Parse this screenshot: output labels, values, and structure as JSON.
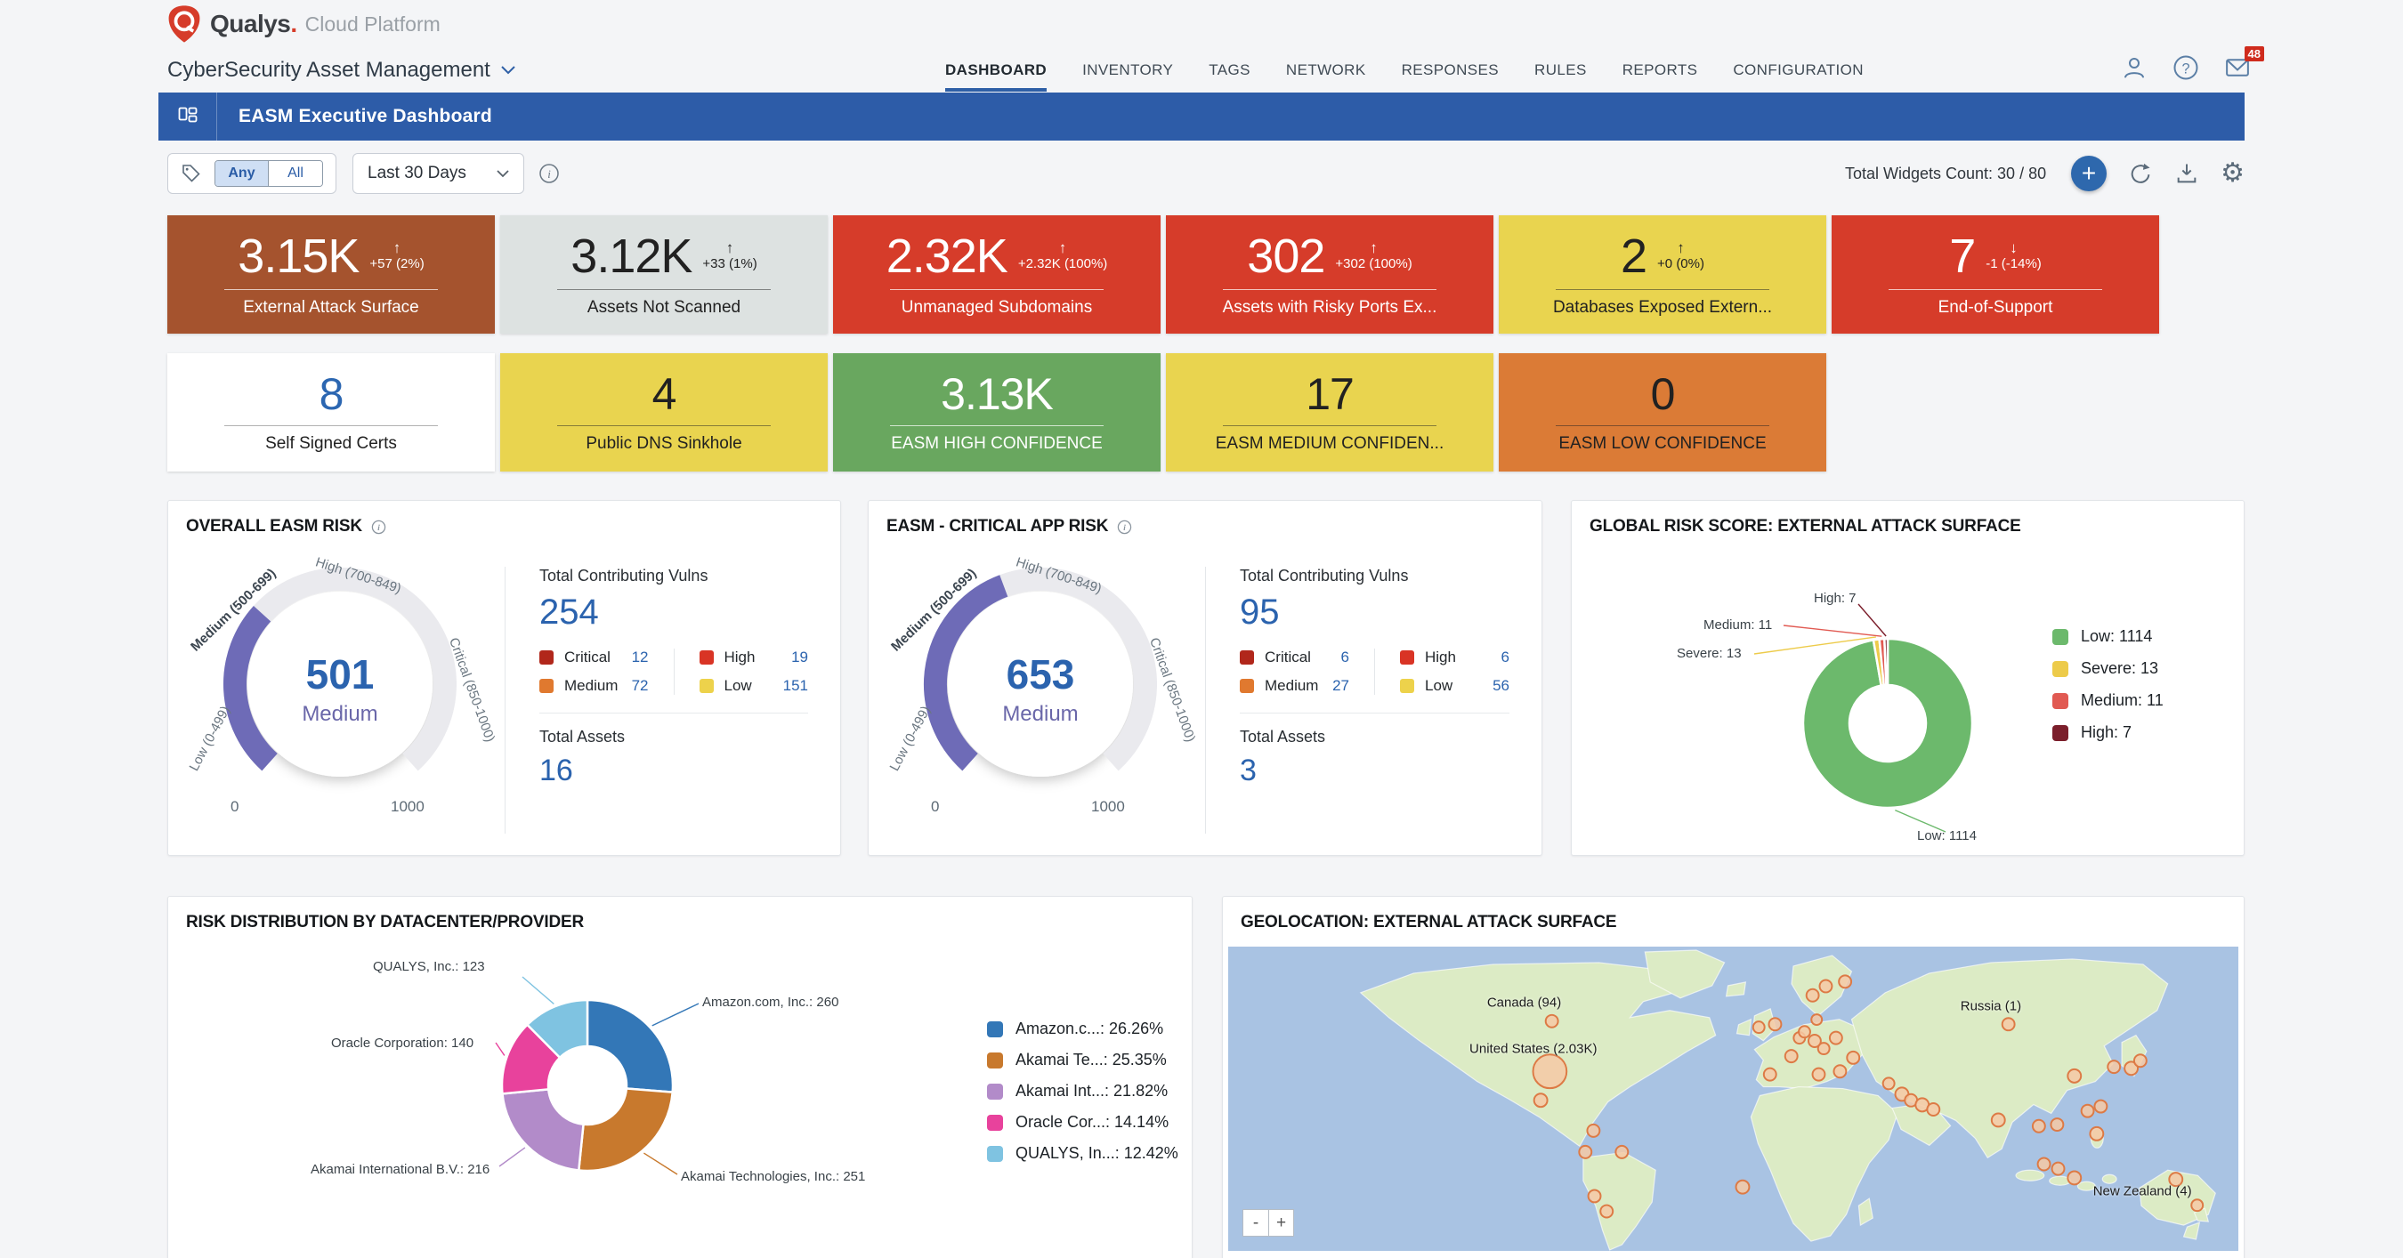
{
  "header": {
    "logo": {
      "brand": "Qualys",
      "dot": ".",
      "platform": "Cloud Platform"
    },
    "module": {
      "label": "CyberSecurity Asset Management"
    },
    "nav": {
      "items": [
        {
          "label": "DASHBOARD"
        },
        {
          "label": "INVENTORY"
        },
        {
          "label": "TAGS"
        },
        {
          "label": "NETWORK"
        },
        {
          "label": "RESPONSES"
        },
        {
          "label": "RULES"
        },
        {
          "label": "REPORTS"
        },
        {
          "label": "CONFIGURATION"
        }
      ]
    },
    "mail_badge": "48"
  },
  "banner": {
    "title": "EASM Executive Dashboard"
  },
  "toolbar": {
    "toggle": {
      "any": "Any",
      "all": "All",
      "selected": "Any"
    },
    "date_range": "Last 30 Days",
    "widgets_count": "Total Widgets Count: 30 / 80",
    "add_label": "+"
  },
  "kpi_row1": [
    {
      "value": "3.15K",
      "arrow": "↑",
      "delta": "+57 (2%)",
      "label": "External Attack Surface",
      "bg": "#a5532e",
      "fg": "#ffffff",
      "line": "rgba(255,255,255,0.7)"
    },
    {
      "value": "3.12K",
      "arrow": "↑",
      "delta": "+33 (1%)",
      "label": "Assets Not Scanned",
      "bg": "#dde2e1",
      "fg": "#212121",
      "line": "rgba(33,33,33,0.5)"
    },
    {
      "value": "2.32K",
      "arrow": "↑",
      "delta": "+2.32K (100%)",
      "label": "Unmanaged Subdomains",
      "bg": "#d63c2a",
      "fg": "#ffffff",
      "line": "rgba(255,255,255,0.7)"
    },
    {
      "value": "302",
      "arrow": "↑",
      "delta": "+302 (100%)",
      "label": "Assets with Risky Ports Ex...",
      "bg": "#d63c2a",
      "fg": "#ffffff",
      "line": "rgba(255,255,255,0.7)"
    },
    {
      "value": "2",
      "arrow": "↑",
      "delta": "+0 (0%)",
      "label": "Databases Exposed Extern...",
      "bg": "#e9d44f",
      "fg": "#212121",
      "line": "rgba(33,33,33,0.5)"
    },
    {
      "value": "7",
      "arrow": "↓",
      "delta": "-1 (-14%)",
      "label": "End-of-Support",
      "bg": "#d63c2a",
      "fg": "#ffffff",
      "line": "rgba(255,255,255,0.7)"
    }
  ],
  "kpi_row2": [
    {
      "value": "8",
      "label": "Self Signed Certs",
      "bg": "#ffffff",
      "fg": "#2b66b1",
      "label_fg": "#212121",
      "line": "rgba(33,33,33,0.35)"
    },
    {
      "value": "4",
      "label": "Public DNS Sinkhole",
      "bg": "#e9d44f",
      "fg": "#212121",
      "label_fg": "#212121",
      "line": "rgba(33,33,33,0.5)"
    },
    {
      "value": "3.13K",
      "label": "EASM HIGH CONFIDENCE",
      "bg": "#69a75f",
      "fg": "#ffffff",
      "label_fg": "#ffffff",
      "line": "rgba(255,255,255,0.7)"
    },
    {
      "value": "17",
      "label": "EASM MEDIUM CONFIDEN...",
      "bg": "#e9d44f",
      "fg": "#212121",
      "label_fg": "#212121",
      "line": "rgba(33,33,33,0.5)"
    },
    {
      "value": "0",
      "label": "EASM LOW CONFIDENCE",
      "bg": "#db7b36",
      "fg": "#212121",
      "label_fg": "#212121",
      "line": "rgba(33,33,33,0.5)"
    }
  ],
  "chart_data": [
    {
      "type": "gauge",
      "title": "OVERALL EASM RISK",
      "value": 501,
      "min": 0,
      "max": 1000,
      "min_label": "0",
      "max_label": "1000",
      "classification": "Medium",
      "fill_color": "#6e6bb7",
      "track_color": "#eaeaee",
      "bands": [
        {
          "label": "Low (0-499)"
        },
        {
          "label": "Medium (500-699)"
        },
        {
          "label": "High (700-849)"
        },
        {
          "label": "Critical (850-1000)"
        }
      ],
      "stats": {
        "vulns_label": "Total Contributing Vulns",
        "vulns_total": "254",
        "breakdown": [
          {
            "label": "Critical",
            "value": "12",
            "color": "#b1271b"
          },
          {
            "label": "Medium",
            "value": "72",
            "color": "#e0792f"
          },
          {
            "label": "High",
            "value": "19",
            "color": "#d93425"
          },
          {
            "label": "Low",
            "value": "151",
            "color": "#edd24b"
          }
        ],
        "assets_label": "Total Assets",
        "assets_total": "16"
      }
    },
    {
      "type": "gauge",
      "title": "EASM - CRITICAL APP RISK",
      "value": 653,
      "min": 0,
      "max": 1000,
      "min_label": "0",
      "max_label": "1000",
      "classification": "Medium",
      "fill_color": "#6e6bb7",
      "track_color": "#eaeaee",
      "bands": [
        {
          "label": "Low (0-499)"
        },
        {
          "label": "Medium (500-699)"
        },
        {
          "label": "High (700-849)"
        },
        {
          "label": "Critical (850-1000)"
        }
      ],
      "stats": {
        "vulns_label": "Total Contributing Vulns",
        "vulns_total": "95",
        "breakdown": [
          {
            "label": "Critical",
            "value": "6",
            "color": "#b1271b"
          },
          {
            "label": "Medium",
            "value": "27",
            "color": "#e0792f"
          },
          {
            "label": "High",
            "value": "6",
            "color": "#d93425"
          },
          {
            "label": "Low",
            "value": "56",
            "color": "#edd24b"
          }
        ],
        "assets_label": "Total Assets",
        "assets_total": "3"
      }
    },
    {
      "type": "donut",
      "title": "GLOBAL RISK SCORE: EXTERNAL ATTACK SURFACE",
      "slices": [
        {
          "label": "Low",
          "value": 1114,
          "color": "#6cb96c",
          "callout": "Low: 1114"
        },
        {
          "label": "Severe",
          "value": 13,
          "color": "#edcb4a",
          "callout": "Severe: 13"
        },
        {
          "label": "Medium",
          "value": 11,
          "color": "#e15a52",
          "callout": "Medium: 11"
        },
        {
          "label": "High",
          "value": 7,
          "color": "#7b1e2b",
          "callout": "High: 7"
        }
      ],
      "legend": [
        {
          "label": "Low: 1114",
          "color": "#6cb96c"
        },
        {
          "label": "Severe: 13",
          "color": "#edcb4a"
        },
        {
          "label": "Medium: 11",
          "color": "#e15a52"
        },
        {
          "label": "High: 7",
          "color": "#7b1e2b"
        }
      ]
    },
    {
      "type": "donut",
      "title": "RISK DISTRIBUTION BY DATACENTER/PROVIDER",
      "slices": [
        {
          "label": "Amazon.com, Inc.",
          "value": 260,
          "color": "#3377b7",
          "callout": "Amazon.com, Inc.: 260"
        },
        {
          "label": "Akamai Technologies, Inc.",
          "value": 251,
          "color": "#c8792d",
          "callout": "Akamai Technologies, Inc.: 251"
        },
        {
          "label": "Akamai International B.V.",
          "value": 216,
          "color": "#b28bc9",
          "callout": "Akamai International B.V.: 216"
        },
        {
          "label": "Oracle Corporation",
          "value": 140,
          "color": "#e8429c",
          "callout": "Oracle Corporation: 140"
        },
        {
          "label": "QUALYS, Inc.",
          "value": 123,
          "color": "#7fc3e1",
          "callout": "QUALYS, Inc.: 123"
        }
      ],
      "legend": [
        {
          "label": "Amazon.c...",
          "pct": " : 26.26%",
          "color": "#3377b7"
        },
        {
          "label": "Akamai Te...",
          "pct": " : 25.35%",
          "color": "#c8792d"
        },
        {
          "label": "Akamai Int...",
          "pct": " : 21.82%",
          "color": "#b28bc9"
        },
        {
          "label": "Oracle Cor...",
          "pct": " : 14.14%",
          "color": "#e8429c"
        },
        {
          "label": "QUALYS, In...",
          "pct": ": 12.42%",
          "color": "#7fc3e1"
        }
      ]
    },
    {
      "type": "map",
      "title": "GEOLOCATION: EXTERNAL ATTACK SURFACE",
      "zoom_out": "-",
      "zoom_in": "+",
      "marker_fill": "#f6c9a4",
      "marker_stroke": "#dd7a45",
      "labels": [
        {
          "text": "Canada (94)",
          "x": 29.3,
          "y": 18.5
        },
        {
          "text": "United States (2.03K)",
          "x": 30.2,
          "y": 33.5
        },
        {
          "text": "Russia (1)",
          "x": 75.5,
          "y": 19.5
        },
        {
          "text": "New Zealand (4)",
          "x": 90.5,
          "y": 80.5
        }
      ],
      "markers": [
        {
          "x": 31.7,
          "y": 41,
          "r": 19
        },
        {
          "x": 31.9,
          "y": 24.5,
          "r": 7
        },
        {
          "x": 30.8,
          "y": 50.5,
          "r": 7.5
        },
        {
          "x": 36,
          "y": 60.5,
          "r": 7
        },
        {
          "x": 35.2,
          "y": 67.5,
          "r": 7
        },
        {
          "x": 38.8,
          "y": 67.5,
          "r": 7
        },
        {
          "x": 36.1,
          "y": 82,
          "r": 7
        },
        {
          "x": 37.3,
          "y": 87,
          "r": 7
        },
        {
          "x": 50.7,
          "y": 79,
          "r": 7.5
        },
        {
          "x": 52.3,
          "y": 26.5,
          "r": 6.5
        },
        {
          "x": 53.9,
          "y": 25.5,
          "r": 7
        },
        {
          "x": 53.4,
          "y": 42,
          "r": 7
        },
        {
          "x": 55.5,
          "y": 36,
          "r": 7
        },
        {
          "x": 56.3,
          "y": 30,
          "r": 6.5
        },
        {
          "x": 56.8,
          "y": 28,
          "r": 6.5
        },
        {
          "x": 57.8,
          "y": 31,
          "r": 7
        },
        {
          "x": 57.6,
          "y": 16,
          "r": 7
        },
        {
          "x": 58.9,
          "y": 13,
          "r": 7
        },
        {
          "x": 60.8,
          "y": 11.5,
          "r": 7
        },
        {
          "x": 58,
          "y": 24,
          "r": 6
        },
        {
          "x": 59.9,
          "y": 30,
          "r": 7
        },
        {
          "x": 58.7,
          "y": 33.5,
          "r": 6.5
        },
        {
          "x": 58.2,
          "y": 42,
          "r": 7
        },
        {
          "x": 60.3,
          "y": 41,
          "r": 7
        },
        {
          "x": 61.6,
          "y": 36.5,
          "r": 7
        },
        {
          "x": 76.9,
          "y": 25.5,
          "r": 7
        },
        {
          "x": 65.1,
          "y": 45,
          "r": 6.5
        },
        {
          "x": 66.4,
          "y": 48.5,
          "r": 7.5
        },
        {
          "x": 67.3,
          "y": 50.5,
          "r": 7
        },
        {
          "x": 68.4,
          "y": 52,
          "r": 7.5
        },
        {
          "x": 69.5,
          "y": 53.5,
          "r": 7
        },
        {
          "x": 75.9,
          "y": 57,
          "r": 7.5
        },
        {
          "x": 79.9,
          "y": 59,
          "r": 7
        },
        {
          "x": 81.7,
          "y": 58.5,
          "r": 7
        },
        {
          "x": 80.4,
          "y": 71.5,
          "r": 7
        },
        {
          "x": 81.8,
          "y": 73,
          "r": 7
        },
        {
          "x": 83.4,
          "y": 76,
          "r": 7.5
        },
        {
          "x": 83.4,
          "y": 42.5,
          "r": 7.5
        },
        {
          "x": 84.7,
          "y": 54,
          "r": 7
        },
        {
          "x": 86,
          "y": 52.5,
          "r": 7
        },
        {
          "x": 85.6,
          "y": 61.5,
          "r": 7.5
        },
        {
          "x": 87.3,
          "y": 39.5,
          "r": 7
        },
        {
          "x": 89,
          "y": 40,
          "r": 7.5
        },
        {
          "x": 89.9,
          "y": 37.5,
          "r": 7
        },
        {
          "x": 93.4,
          "y": 76.5,
          "r": 7.5
        },
        {
          "x": 95.5,
          "y": 85,
          "r": 6.5
        }
      ]
    }
  ]
}
